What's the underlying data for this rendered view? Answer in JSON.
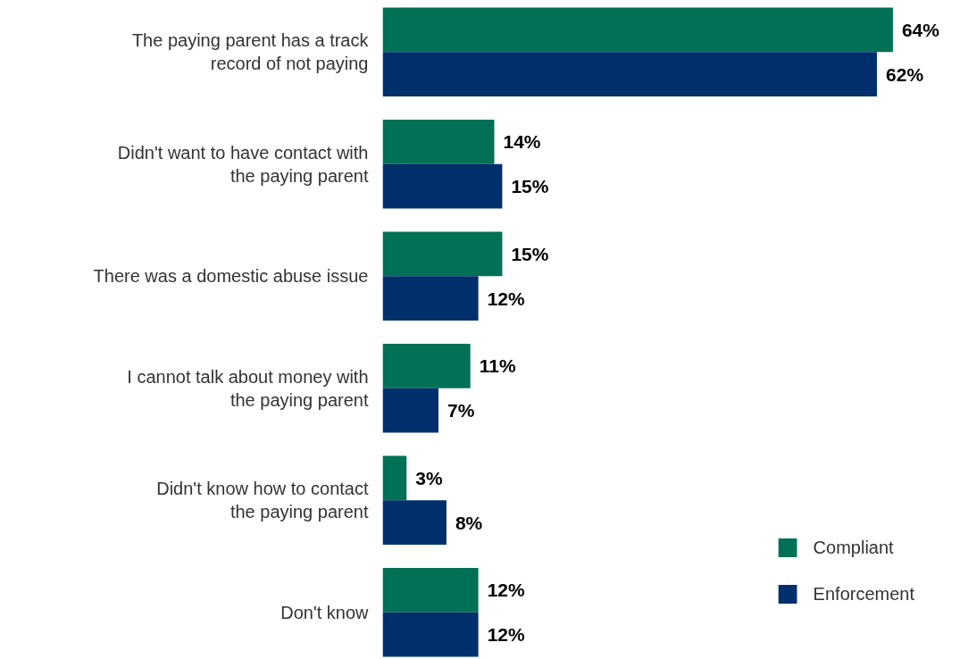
{
  "chart_data": {
    "type": "bar",
    "orientation": "horizontal",
    "categories": [
      "The paying parent has a track\nrecord of not paying",
      "Didn't want to have contact with\nthe paying parent",
      "There was a domestic abuse issue",
      "I cannot talk about money with\nthe paying parent",
      "Didn't know how to contact\nthe paying parent",
      "Don't know"
    ],
    "series": [
      {
        "name": "Compliant",
        "color": "#007056",
        "values": [
          64,
          14,
          15,
          11,
          3,
          12
        ],
        "value_labels": [
          "64%",
          "14%",
          "15%",
          "11%",
          "3%",
          "12%"
        ]
      },
      {
        "name": "Enforcement",
        "color": "#002f6b",
        "values": [
          62,
          15,
          12,
          7,
          8,
          12
        ],
        "value_labels": [
          "62%",
          "15%",
          "12%",
          "7%",
          "8%",
          "12%"
        ]
      }
    ],
    "legend": "bottom right",
    "grid": false
  }
}
